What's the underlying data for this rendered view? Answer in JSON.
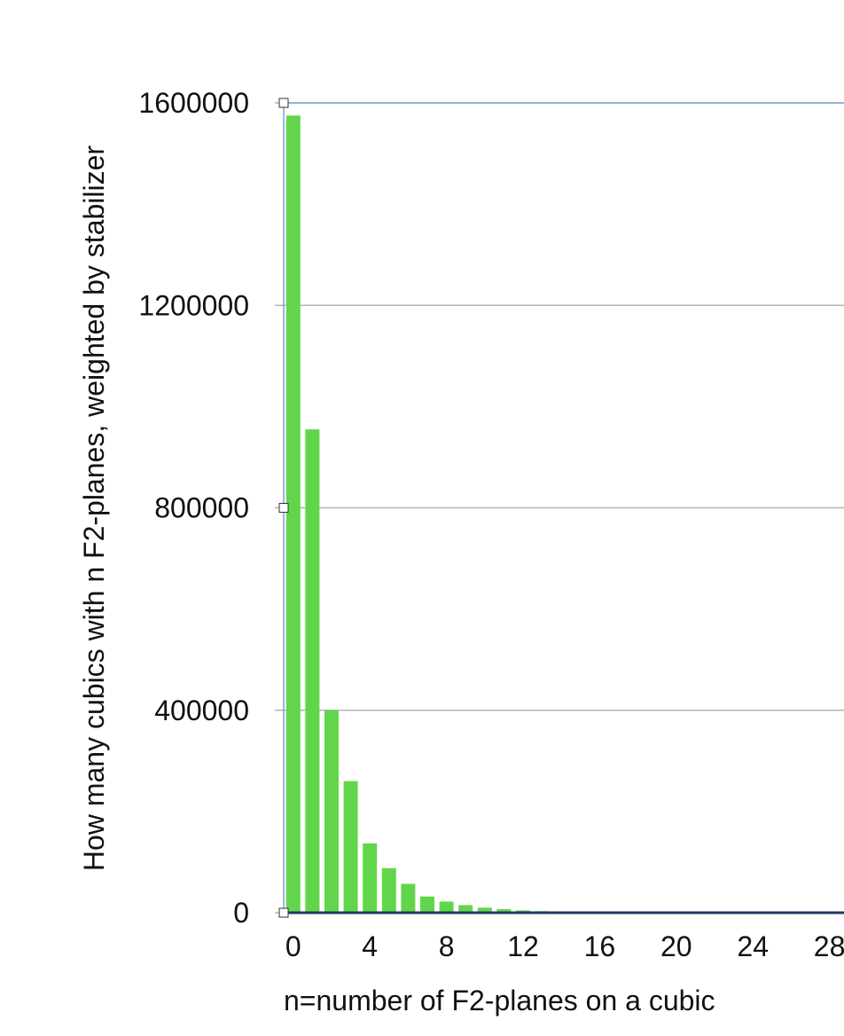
{
  "chart_data": {
    "type": "bar",
    "xlabel": "n=number of F2-planes on a cubic",
    "ylabel": "How many cubics with n F2-planes, weighted by stabilizer",
    "ylim": [
      0,
      1600000
    ],
    "y_ticks": [
      "0",
      "400000",
      "800000",
      "1200000",
      "1600000"
    ],
    "x_ticks": [
      {
        "n": 0,
        "label": "0"
      },
      {
        "n": 4,
        "label": "4"
      },
      {
        "n": 8,
        "label": "8"
      },
      {
        "n": 12,
        "label": "12"
      },
      {
        "n": 16,
        "label": "16"
      },
      {
        "n": 20,
        "label": "20"
      },
      {
        "n": 24,
        "label": "24"
      },
      {
        "n": 28,
        "label": "28"
      }
    ],
    "categories": [
      0,
      1,
      2,
      3,
      4,
      5,
      6,
      7,
      8,
      9,
      10,
      11,
      12,
      13,
      14,
      15,
      16,
      17,
      18,
      19,
      20,
      21,
      22,
      23,
      24,
      25,
      26,
      27,
      28,
      29
    ],
    "values": [
      1575000,
      955000,
      400000,
      260000,
      137000,
      88000,
      57000,
      32000,
      22000,
      15000,
      10000,
      7000,
      4500,
      3000,
      2000,
      1500,
      1000,
      700,
      500,
      400,
      300,
      200,
      150,
      100,
      80,
      60,
      40,
      30,
      20,
      10
    ],
    "grid": true,
    "bar_color": "#62d64b",
    "gridline_color": "#b4b4b4",
    "plot_border_color": "#7d9fdb",
    "baseline_color": "#1f3864"
  }
}
